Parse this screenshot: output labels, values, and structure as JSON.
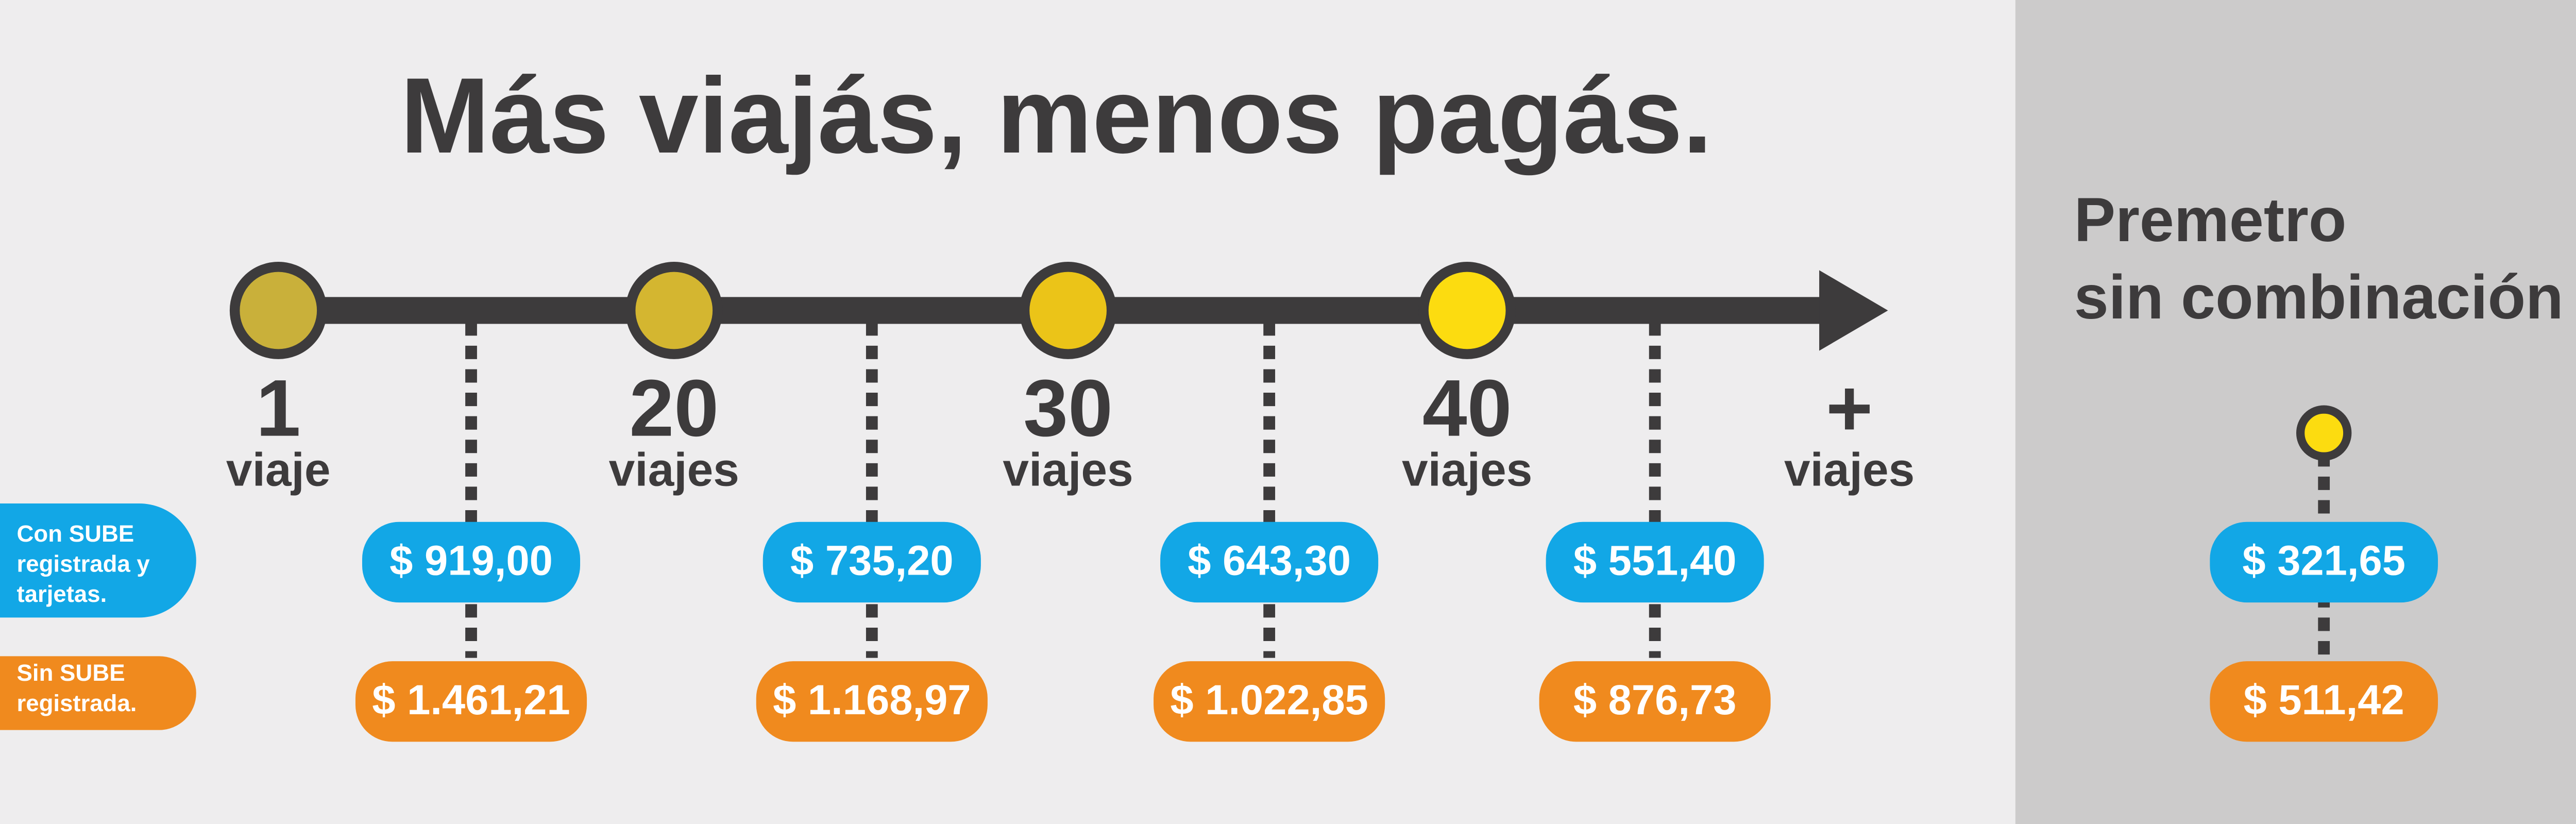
{
  "header": {
    "title": "Más viajás, menos pagás."
  },
  "legend": [
    {
      "lines": [
        "Con SUBE",
        "registrada y",
        "tarjetas."
      ]
    },
    {
      "lines": [
        "Sin SUBE",
        "registrada."
      ]
    }
  ],
  "milestones": [
    {
      "number": "1",
      "unit": "viaje"
    },
    {
      "number": "20",
      "unit": "viajes"
    },
    {
      "number": "30",
      "unit": "viajes"
    },
    {
      "number": "40",
      "unit": "viajes"
    },
    {
      "number": "+",
      "unit": "viajes"
    }
  ],
  "prices": [
    {
      "registered": "$ 919,00",
      "unregistered": "$ 1.461,21"
    },
    {
      "registered": "$ 735,20",
      "unregistered": "$ 1.168,97"
    },
    {
      "registered": "$ 643,30",
      "unregistered": "$ 1.022,85"
    },
    {
      "registered": "$ 551,40",
      "unregistered": "$ 876,73"
    }
  ],
  "premetro": {
    "title_lines": [
      "Premetro",
      "sin combinación"
    ],
    "registered": "$ 321,65",
    "unregistered": "$ 511,42"
  }
}
